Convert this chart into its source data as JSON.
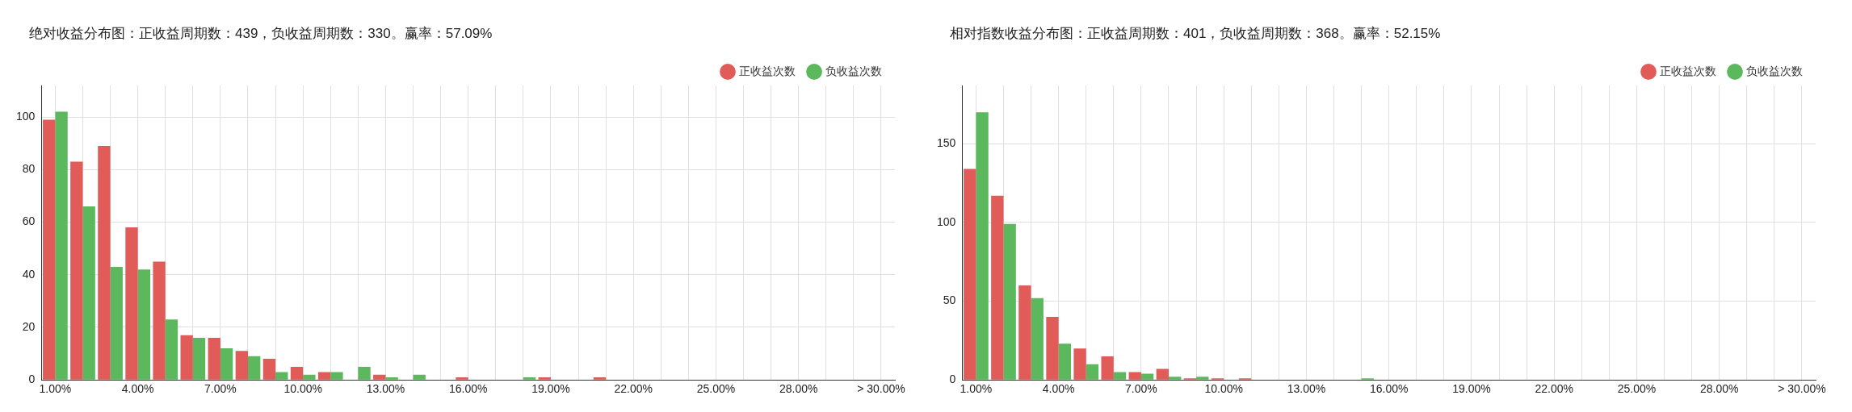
{
  "chart_data": [
    {
      "type": "bar",
      "title": "绝对收益分布图：正收益周期数：439，负收益周期数：330。赢率：57.09%",
      "categories": [
        "1.00%",
        null,
        null,
        "4.00%",
        null,
        null,
        "7.00%",
        null,
        null,
        "10.00%",
        null,
        null,
        "13.00%",
        null,
        null,
        "16.00%",
        null,
        null,
        "19.00%",
        null,
        null,
        "22.00%",
        null,
        null,
        "25.00%",
        null,
        null,
        "28.00%",
        null,
        null,
        "> 30.00%"
      ],
      "series": [
        {
          "name": "正收益次数",
          "color": "#e15b58",
          "values": [
            99,
            83,
            89,
            58,
            45,
            17,
            16,
            11,
            8,
            5,
            3,
            0,
            2,
            0,
            0,
            1,
            0,
            0,
            1,
            0,
            1,
            0,
            0,
            0,
            0,
            0,
            0,
            0,
            0,
            0,
            0
          ]
        },
        {
          "name": "负收益次数",
          "color": "#5cb85c",
          "values": [
            102,
            66,
            43,
            42,
            23,
            16,
            12,
            9,
            3,
            2,
            3,
            5,
            1,
            2,
            0,
            0,
            0,
            1,
            0,
            0,
            0,
            0,
            0,
            0,
            0,
            0,
            0,
            0,
            0,
            0,
            0
          ]
        }
      ],
      "ylim": [
        0,
        112
      ],
      "yticks": [
        0,
        20,
        40,
        60,
        80,
        100
      ],
      "grid": true,
      "legend": "top right"
    },
    {
      "type": "bar",
      "title": "相对指数收益分布图：正收益周期数：401，负收益周期数：368。赢率：52.15%",
      "categories": [
        "1.00%",
        null,
        null,
        "4.00%",
        null,
        null,
        "7.00%",
        null,
        null,
        "10.00%",
        null,
        null,
        "13.00%",
        null,
        null,
        "16.00%",
        null,
        null,
        "19.00%",
        null,
        null,
        "22.00%",
        null,
        null,
        "25.00%",
        null,
        null,
        "28.00%",
        null,
        null,
        "> 30.00%"
      ],
      "series": [
        {
          "name": "正收益次数",
          "color": "#e15b58",
          "values": [
            134,
            117,
            60,
            40,
            20,
            15,
            5,
            7,
            1,
            1,
            1,
            0,
            0,
            0,
            0,
            0,
            0,
            0,
            0,
            0,
            0,
            0,
            0,
            0,
            0,
            0,
            0,
            0,
            0,
            0,
            0
          ]
        },
        {
          "name": "负收益次数",
          "color": "#5cb85c",
          "values": [
            170,
            99,
            52,
            23,
            10,
            5,
            4,
            2,
            2,
            0,
            0,
            0,
            0,
            0,
            1,
            0,
            0,
            0,
            0,
            0,
            0,
            0,
            0,
            0,
            0,
            0,
            0,
            0,
            0,
            0,
            0
          ]
        }
      ],
      "ylim": [
        0,
        187
      ],
      "yticks": [
        0,
        50,
        100,
        150
      ],
      "grid": true,
      "legend": "top right"
    }
  ]
}
